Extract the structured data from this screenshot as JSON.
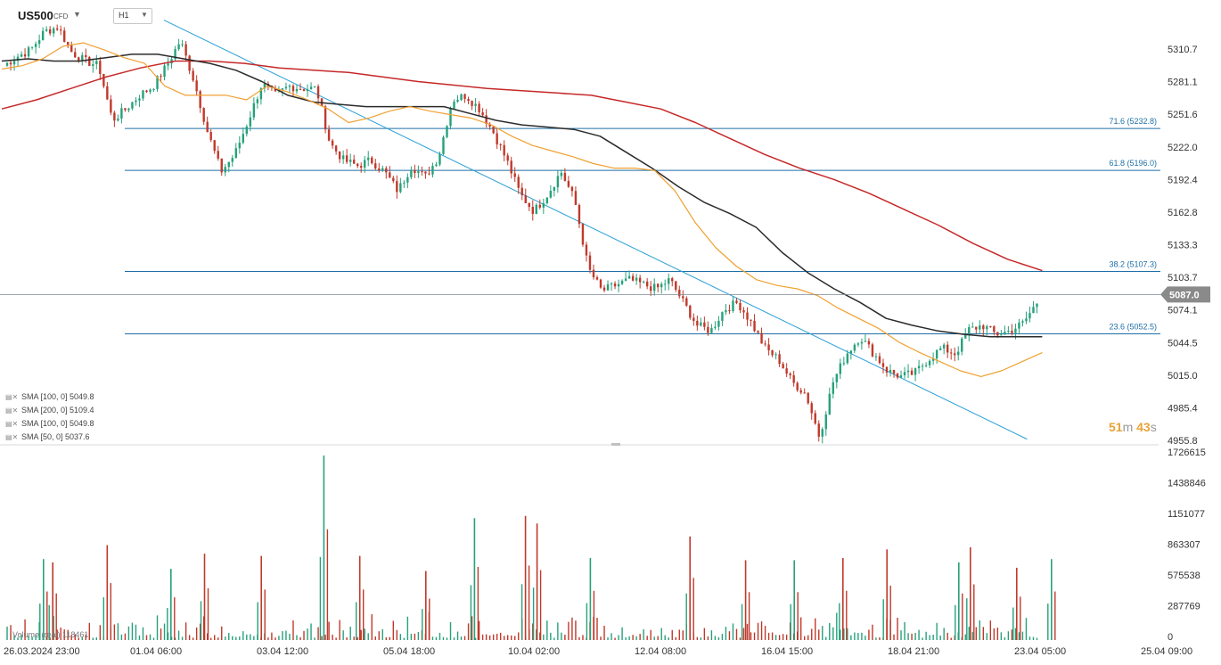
{
  "header": {
    "symbol": "US500",
    "instrument_type": "CFD",
    "symbol_caret_icon": "caret-down-icon",
    "timeframe": "H1",
    "timeframe_caret_icon": "caret-down-icon"
  },
  "legend": {
    "items": [
      {
        "label": "SMA [100,  0]  5049.8",
        "icons": [
          "settings-icon",
          "close-icon"
        ]
      },
      {
        "label": "SMA [200,  0]  5109.4",
        "icons": [
          "settings-icon",
          "close-icon"
        ]
      },
      {
        "label": "SMA [100,  0]  5049.8",
        "icons": [
          "settings-icon",
          "close-icon"
        ]
      },
      {
        "label": "SMA [50,  0]  5037.6",
        "icons": [
          "settings-icon",
          "close-icon"
        ]
      }
    ]
  },
  "timer": {
    "minutes": "51",
    "minutes_unit": "m",
    "seconds": "43",
    "seconds_unit": "s"
  },
  "volume_label": "Volume  (real)  118461",
  "colors": {
    "up": "#26a17b",
    "down": "#c0392b",
    "sma50": "#f0a030",
    "sma100": "#2b2b2b",
    "sma200": "#c62828",
    "fib": "#1e6fa8",
    "trend": "#2a9fd6",
    "price_tag": "#8a8a8a"
  },
  "chart_data": {
    "type": "candlestick",
    "symbol": "US500",
    "timeframe": "H1",
    "y_range": [
      4955.8,
      5330
    ],
    "y_ticks": [
      "5310.7",
      "5281.1",
      "5251.6",
      "5222.0",
      "5192.4",
      "5162.8",
      "5133.3",
      "5103.7",
      "5074.1",
      "5044.5",
      "5015.0",
      "4985.4",
      "4955.8"
    ],
    "x_ticks": [
      "26.03.2024  23:00",
      "01.04  06:00",
      "03.04  12:00",
      "05.04  18:00",
      "10.04  02:00",
      "12.04  08:00",
      "16.04  15:00",
      "18.04  21:00",
      "23.04  05:00",
      "25.04  09:00"
    ],
    "last_price": 5087.0,
    "last_price_label": "5087.0",
    "fibonacci_levels": [
      {
        "label": "71.6 (5232.8)",
        "value": 5232.8
      },
      {
        "label": "61.8 (5196.0)",
        "value": 5196.0
      },
      {
        "label": "38.2 (5107.3)",
        "value": 5107.3
      },
      {
        "label": "23.6 (5052.5)",
        "value": 5052.5
      }
    ],
    "trend_line": {
      "from": {
        "x": 0.14,
        "y": 5328
      },
      "to": {
        "x": 0.885,
        "y": 4960
      }
    },
    "price_anchors": [
      5288,
      5296,
      5302,
      5318,
      5322,
      5300,
      5292,
      5288,
      5240,
      5250,
      5262,
      5270,
      5288,
      5310,
      5275,
      5230,
      5195,
      5210,
      5240,
      5272,
      5262,
      5270,
      5268,
      5268,
      5220,
      5205,
      5200,
      5205,
      5195,
      5178,
      5200,
      5190,
      5208,
      5258,
      5262,
      5250,
      5230,
      5205,
      5175,
      5160,
      5175,
      5195,
      5170,
      5110,
      5090,
      5095,
      5100,
      5096,
      5092,
      5100,
      5080,
      5060,
      5055,
      5074,
      5080,
      5062,
      5040,
      5030,
      5010,
      5000,
      4962,
      5010,
      5035,
      5050,
      5035,
      5020,
      5015,
      5018,
      5030,
      5040,
      5035,
      5056,
      5060,
      5052,
      5055,
      5062,
      5080
    ],
    "sma50": [
      5285,
      5288,
      5294,
      5305,
      5308,
      5302,
      5295,
      5290,
      5270,
      5262,
      5262,
      5262,
      5258,
      5270,
      5265,
      5258,
      5250,
      5238,
      5242,
      5248,
      5252,
      5248,
      5245,
      5242,
      5236,
      5226,
      5218,
      5213,
      5208,
      5202,
      5198,
      5198,
      5196,
      5178,
      5150,
      5128,
      5112,
      5100,
      5095,
      5092,
      5086,
      5075,
      5066,
      5057,
      5045,
      5036,
      5028,
      5020,
      5015,
      5020,
      5028,
      5036
    ],
    "sma100": [
      5292,
      5294,
      5292,
      5292,
      5295,
      5298,
      5298,
      5294,
      5290,
      5284,
      5274,
      5262,
      5256,
      5254,
      5252,
      5252,
      5252,
      5252,
      5246,
      5240,
      5236,
      5234,
      5232,
      5226,
      5212,
      5198,
      5182,
      5168,
      5158,
      5146,
      5124,
      5106,
      5092,
      5080,
      5066,
      5060,
      5055,
      5052,
      5050,
      5050,
      5050
    ],
    "sma200": [
      5250,
      5258,
      5268,
      5278,
      5286,
      5292,
      5292,
      5290,
      5286,
      5284,
      5282,
      5278,
      5274,
      5271,
      5268,
      5266,
      5264,
      5262,
      5256,
      5250,
      5238,
      5224,
      5210,
      5198,
      5188,
      5176,
      5162,
      5148,
      5132,
      5118,
      5108
    ],
    "volume": {
      "y_ticks": [
        "1726615",
        "1438846",
        "1151077",
        "863307",
        "575538",
        "287769",
        "0"
      ],
      "y_max": 1726615,
      "spikes": [
        {
          "x": 0.036,
          "value": 750000
        },
        {
          "x": 0.044,
          "value": 720000
        },
        {
          "x": 0.091,
          "value": 880000
        },
        {
          "x": 0.146,
          "value": 660000
        },
        {
          "x": 0.175,
          "value": 800000
        },
        {
          "x": 0.224,
          "value": 780000
        },
        {
          "x": 0.278,
          "value": 1710000
        },
        {
          "x": 0.309,
          "value": 780000
        },
        {
          "x": 0.366,
          "value": 640000
        },
        {
          "x": 0.408,
          "value": 1130000
        },
        {
          "x": 0.452,
          "value": 1150000
        },
        {
          "x": 0.462,
          "value": 1080000
        },
        {
          "x": 0.508,
          "value": 760000
        },
        {
          "x": 0.594,
          "value": 960000
        },
        {
          "x": 0.642,
          "value": 740000
        },
        {
          "x": 0.684,
          "value": 740000
        },
        {
          "x": 0.726,
          "value": 760000
        },
        {
          "x": 0.764,
          "value": 840000
        },
        {
          "x": 0.826,
          "value": 720000
        },
        {
          "x": 0.836,
          "value": 860000
        },
        {
          "x": 0.876,
          "value": 670000
        },
        {
          "x": 0.906,
          "value": 750000
        }
      ]
    }
  }
}
